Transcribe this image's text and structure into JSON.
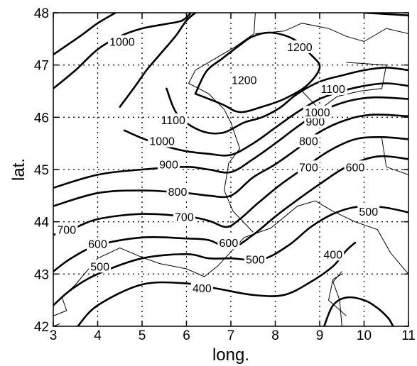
{
  "chart_data": {
    "type": "contour",
    "xlabel": "long.",
    "ylabel": "lat.",
    "xlim": [
      3,
      11
    ],
    "ylim": [
      42,
      48
    ],
    "xticks": [
      3,
      4,
      5,
      6,
      7,
      8,
      9,
      10,
      11
    ],
    "yticks": [
      42,
      43,
      44,
      45,
      46,
      47,
      48
    ],
    "grid": true,
    "contours": [
      {
        "level": 400,
        "label": "400",
        "lines": [
          [
            [
              3.55,
              42.0
            ],
            [
              4.0,
              42.4
            ],
            [
              5.0,
              42.8
            ],
            [
              6.0,
              42.82
            ],
            [
              6.7,
              42.72
            ],
            [
              7.5,
              42.6
            ],
            [
              8.2,
              42.6
            ],
            [
              8.8,
              42.85
            ],
            [
              9.3,
              43.15
            ],
            [
              9.6,
              43.45
            ],
            [
              9.8,
              43.6
            ]
          ],
          [
            [
              9.1,
              42.0
            ],
            [
              9.3,
              42.4
            ],
            [
              9.6,
              42.55
            ],
            [
              10.0,
              42.5
            ],
            [
              10.3,
              42.35
            ],
            [
              10.55,
              42.15
            ],
            [
              10.65,
              42.0
            ]
          ]
        ],
        "label_pos": [
          [
            6.35,
            42.73
          ],
          [
            9.3,
            43.38
          ]
        ]
      },
      {
        "level": 500,
        "label": "500",
        "lines": [
          [
            [
              3.0,
              42.4
            ],
            [
              3.4,
              42.7
            ],
            [
              4.0,
              43.0
            ],
            [
              5.0,
              43.3
            ],
            [
              6.0,
              43.38
            ],
            [
              6.5,
              43.3
            ],
            [
              7.0,
              43.3
            ],
            [
              7.7,
              43.28
            ],
            [
              8.3,
              43.55
            ],
            [
              8.8,
              43.9
            ],
            [
              9.3,
              44.15
            ],
            [
              9.8,
              44.28
            ],
            [
              10.4,
              44.28
            ],
            [
              11.0,
              44.18
            ]
          ]
        ],
        "label_pos": [
          [
            4.05,
            43.15
          ],
          [
            7.55,
            43.28
          ],
          [
            10.1,
            44.2
          ]
        ]
      },
      {
        "level": 600,
        "label": "600",
        "lines": [
          [
            [
              3.0,
              43.05
            ],
            [
              3.4,
              43.3
            ],
            [
              4.0,
              43.55
            ],
            [
              5.0,
              43.7
            ],
            [
              6.0,
              43.68
            ],
            [
              6.5,
              43.65
            ],
            [
              7.0,
              43.5
            ],
            [
              7.5,
              43.75
            ],
            [
              8.0,
              44.1
            ],
            [
              8.5,
              44.42
            ],
            [
              9.0,
              44.72
            ],
            [
              9.6,
              45.05
            ],
            [
              10.3,
              45.25
            ],
            [
              11.0,
              45.2
            ]
          ]
        ],
        "label_pos": [
          [
            4.0,
            43.58
          ],
          [
            6.95,
            43.6
          ],
          [
            9.8,
            45.05
          ]
        ]
      },
      {
        "level": 700,
        "label": "700",
        "lines": [
          [
            [
              3.0,
              43.75
            ],
            [
              3.4,
              43.85
            ],
            [
              4.0,
              44.05
            ],
            [
              5.0,
              44.15
            ],
            [
              6.0,
              44.1
            ],
            [
              6.5,
              44.02
            ],
            [
              6.9,
              43.9
            ],
            [
              7.2,
              44.05
            ],
            [
              7.6,
              44.35
            ],
            [
              8.1,
              44.7
            ],
            [
              8.6,
              45.0
            ],
            [
              9.2,
              45.35
            ],
            [
              9.8,
              45.58
            ],
            [
              10.4,
              45.62
            ],
            [
              11.0,
              45.58
            ]
          ]
        ],
        "label_pos": [
          [
            3.3,
            43.85
          ],
          [
            5.95,
            44.1
          ],
          [
            8.75,
            45.05
          ]
        ]
      },
      {
        "level": 800,
        "label": "800",
        "lines": [
          [
            [
              3.0,
              44.3
            ],
            [
              4.0,
              44.55
            ],
            [
              5.0,
              44.6
            ],
            [
              6.0,
              44.55
            ],
            [
              6.5,
              44.5
            ],
            [
              7.0,
              44.5
            ],
            [
              7.5,
              44.85
            ],
            [
              8.0,
              45.1
            ],
            [
              8.5,
              45.4
            ],
            [
              9.0,
              45.72
            ],
            [
              9.6,
              45.95
            ],
            [
              10.2,
              46.05
            ],
            [
              11.0,
              46.02
            ]
          ]
        ],
        "label_pos": [
          [
            5.8,
            44.58
          ],
          [
            8.75,
            45.55
          ]
        ]
      },
      {
        "level": 900,
        "label": "900",
        "lines": [
          [
            [
              3.0,
              44.65
            ],
            [
              4.0,
              44.9
            ],
            [
              5.0,
              45.0
            ],
            [
              6.0,
              45.05
            ],
            [
              6.5,
              45.0
            ],
            [
              7.0,
              44.95
            ],
            [
              7.5,
              45.2
            ],
            [
              8.0,
              45.5
            ],
            [
              8.5,
              45.82
            ],
            [
              9.0,
              46.1
            ],
            [
              9.6,
              46.3
            ],
            [
              10.2,
              46.38
            ],
            [
              11.0,
              46.35
            ]
          ]
        ],
        "label_pos": [
          [
            5.6,
            45.1
          ],
          [
            8.9,
            45.92
          ]
        ]
      },
      {
        "level": 1000,
        "label": "1000",
        "lines": [
          [
            [
              4.6,
              45.75
            ],
            [
              5.0,
              45.6
            ],
            [
              5.5,
              45.45
            ],
            [
              6.0,
              45.35
            ],
            [
              6.5,
              45.3
            ],
            [
              7.0,
              45.28
            ],
            [
              7.5,
              45.5
            ],
            [
              8.0,
              45.8
            ],
            [
              8.5,
              46.1
            ],
            [
              9.0,
              46.35
            ],
            [
              9.5,
              46.5
            ],
            [
              10.0,
              46.6
            ],
            [
              10.5,
              46.65
            ],
            [
              11.0,
              46.6
            ]
          ],
          [
            [
              3.0,
              46.55
            ],
            [
              3.5,
              46.9
            ],
            [
              4.0,
              47.3
            ],
            [
              4.5,
              47.55
            ],
            [
              5.0,
              47.7
            ],
            [
              5.5,
              47.78
            ],
            [
              5.9,
              47.85
            ],
            [
              6.1,
              48.0
            ]
          ]
        ],
        "label_pos": [
          [
            5.45,
            45.55
          ],
          [
            8.95,
            46.1
          ],
          [
            4.55,
            47.45
          ]
        ]
      },
      {
        "level": 1100,
        "label": "1100",
        "lines": [
          [
            [
              4.5,
              46.2
            ],
            [
              4.85,
              46.6
            ],
            [
              5.1,
              46.9
            ],
            [
              5.4,
              47.2
            ],
            [
              5.75,
              47.55
            ],
            [
              6.0,
              47.85
            ],
            [
              6.2,
              48.0
            ]
          ],
          [
            [
              5.55,
              46.55
            ],
            [
              5.8,
              46.05
            ],
            [
              6.3,
              45.75
            ],
            [
              6.8,
              45.7
            ],
            [
              7.3,
              45.9
            ],
            [
              7.7,
              46.0
            ],
            [
              8.1,
              46.18
            ],
            [
              8.5,
              46.45
            ],
            [
              9.0,
              46.68
            ],
            [
              9.5,
              46.8
            ],
            [
              10.0,
              46.9
            ],
            [
              10.5,
              46.95
            ],
            [
              11.0,
              46.9
            ]
          ]
        ],
        "label_pos": [
          [
            5.7,
            45.95
          ],
          [
            9.3,
            46.55
          ]
        ]
      },
      {
        "level": 1200,
        "label": "1200",
        "lines": [
          [
            [
              6.2,
              46.45
            ],
            [
              6.45,
              46.88
            ],
            [
              6.8,
              47.12
            ],
            [
              7.2,
              47.38
            ],
            [
              7.5,
              47.55
            ],
            [
              7.9,
              47.62
            ],
            [
              8.4,
              47.5
            ],
            [
              8.8,
              47.2
            ],
            [
              9.0,
              46.95
            ],
            [
              8.7,
              46.6
            ],
            [
              8.2,
              46.35
            ],
            [
              7.7,
              46.2
            ],
            [
              7.2,
              46.1
            ],
            [
              6.8,
              46.25
            ],
            [
              6.2,
              46.45
            ]
          ],
          [
            [
              3.0,
              47.2
            ],
            [
              3.6,
              47.55
            ],
            [
              4.0,
              47.8
            ],
            [
              4.4,
              48.0
            ]
          ],
          [
            [
              11.0,
              47.95
            ],
            [
              10.0,
              48.0
            ]
          ]
        ],
        "label_pos": [
          [
            7.3,
            46.72
          ],
          [
            8.55,
            47.35
          ]
        ]
      }
    ],
    "coastlines": [
      [
        [
          3.0,
          42.2
        ],
        [
          3.3,
          42.3
        ],
        [
          3.2,
          42.55
        ],
        [
          3.5,
          42.8
        ],
        [
          4.0,
          43.3
        ],
        [
          4.5,
          43.5
        ],
        [
          5.0,
          43.32
        ],
        [
          5.4,
          43.2
        ],
        [
          6.0,
          43.1
        ],
        [
          6.4,
          42.95
        ],
        [
          6.7,
          43.15
        ],
        [
          7.3,
          43.7
        ],
        [
          7.9,
          43.88
        ],
        [
          8.5,
          44.3
        ],
        [
          8.9,
          44.4
        ],
        [
          9.3,
          44.2
        ],
        [
          9.8,
          44.0
        ],
        [
          10.3,
          43.85
        ],
        [
          10.6,
          43.4
        ],
        [
          11.0,
          43.0
        ]
      ],
      [
        [
          9.5,
          42.0
        ],
        [
          9.45,
          42.5
        ],
        [
          9.3,
          42.85
        ],
        [
          9.5,
          43.05
        ]
      ],
      [
        [
          3.0,
          42.0
        ],
        [
          3.15,
          42.05
        ]
      ]
    ],
    "borders": [
      [
        [
          7.55,
          48.0
        ],
        [
          7.52,
          47.6
        ],
        [
          7.1,
          47.35
        ],
        [
          6.7,
          47.15
        ],
        [
          6.2,
          46.9
        ],
        [
          6.05,
          46.65
        ],
        [
          6.5,
          46.45
        ],
        [
          6.85,
          46.15
        ],
        [
          7.0,
          45.9
        ],
        [
          7.2,
          45.4
        ],
        [
          6.95,
          45.12
        ],
        [
          6.85,
          44.6
        ],
        [
          7.05,
          44.2
        ],
        [
          7.5,
          43.8
        ]
      ],
      [
        [
          7.55,
          47.6
        ],
        [
          8.2,
          47.65
        ],
        [
          8.6,
          47.8
        ],
        [
          9.2,
          47.7
        ],
        [
          9.6,
          47.55
        ],
        [
          10.0,
          47.45
        ],
        [
          10.5,
          47.7
        ],
        [
          11.0,
          47.6
        ]
      ],
      [
        [
          8.6,
          46.5
        ],
        [
          9.0,
          46.15
        ],
        [
          9.4,
          46.4
        ],
        [
          9.9,
          46.5
        ],
        [
          10.4,
          46.55
        ],
        [
          10.5,
          47.0
        ],
        [
          9.6,
          47.05
        ]
      ],
      [
        [
          10.4,
          45.6
        ],
        [
          10.5,
          45.05
        ],
        [
          11.0,
          44.9
        ]
      ],
      [
        [
          9.5,
          43.0
        ],
        [
          9.3,
          42.9
        ],
        [
          9.2,
          42.5
        ],
        [
          9.6,
          42.2
        ]
      ]
    ]
  }
}
